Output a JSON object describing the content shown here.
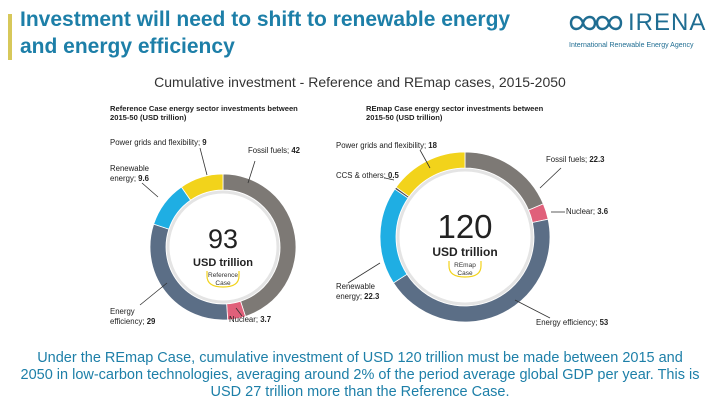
{
  "slide": {
    "title": "Investment will need to shift to renewable energy and energy efficiency",
    "subtitle": "Cumulative investment - Reference and REmap cases, 2015-2050",
    "footer": "Under the REmap Case, cumulative investment of USD 120 trillion must be made between 2015 and 2050 in low-carbon technologies, averaging around 2% of the period average global GDP per year. This is USD 27 trillion more than the Reference Case."
  },
  "logo": {
    "name": "IRENA",
    "tagline": "International Renewable Energy Agency",
    "color": "#1f6d92"
  },
  "colors": {
    "fossil": "#7d7975",
    "nuclear": "#e0607a",
    "efficiency": "#5b6e86",
    "renewable": "#1faee3",
    "grids": "#f2d31b",
    "ccs": "#4d4d4d",
    "title_blue": "#1d7fa8"
  },
  "chart_data": [
    {
      "type": "pie",
      "title": "Reference Case energy sector investments between 2015-50 (USD trillion)",
      "total": 93,
      "unit": "USD trillion",
      "case": "Reference Case",
      "segments": [
        {
          "name": "Fossil fuels",
          "value": 42,
          "label": "Fossil fuels; 42",
          "color": "#7d7975"
        },
        {
          "name": "Nuclear",
          "value": 3.7,
          "label": "Nuclear; 3.7",
          "color": "#e0607a"
        },
        {
          "name": "Energy efficiency",
          "value": 29,
          "label": "Energy efficiency; 29",
          "color": "#5b6e86"
        },
        {
          "name": "Renewable energy",
          "value": 9.6,
          "label": "Renewable energy; 9.6",
          "color": "#1faee3"
        },
        {
          "name": "Power grids and flexibility",
          "value": 9,
          "label": "Power grids and flexibility; 9",
          "color": "#f2d31b"
        }
      ]
    },
    {
      "type": "pie",
      "title": "REmap Case energy sector investments between 2015-50 (USD trillion)",
      "total": 120,
      "unit": "USD trillion",
      "case": "REmap Case",
      "segments": [
        {
          "name": "Fossil fuels",
          "value": 22.3,
          "label": "Fossil fuels; 22.3",
          "color": "#7d7975"
        },
        {
          "name": "Nuclear",
          "value": 3.6,
          "label": "Nuclear; 3.6",
          "color": "#e0607a"
        },
        {
          "name": "Energy efficiency",
          "value": 53,
          "label": "Energy efficiency; 53",
          "color": "#5b6e86"
        },
        {
          "name": "Renewable energy",
          "value": 22.3,
          "label": "Renewable energy; 22.3",
          "color": "#1faee3"
        },
        {
          "name": "CCS & others",
          "value": 0.5,
          "label": "CCS & others; 0.5",
          "color": "#4d4d4d"
        },
        {
          "name": "Power grids and flexibility",
          "value": 18,
          "label": "Power grids and flexibility; 18",
          "color": "#f2d31b"
        }
      ]
    }
  ]
}
